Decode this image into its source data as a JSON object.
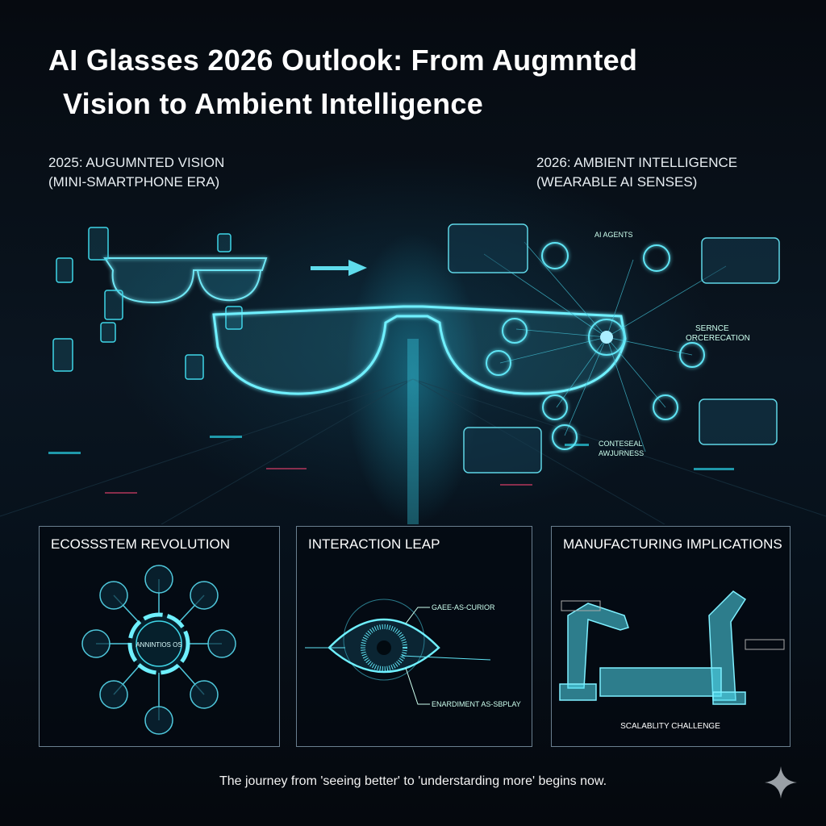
{
  "title": {
    "line1": "AI Glasses 2026 Outlook: From Augmnted",
    "line2": "Vision to Ambient Intelligence"
  },
  "left_era": {
    "line1": "2025: AUGUMNTED VISION",
    "line2": "(MINI-SMARTPHONE ERA)"
  },
  "right_era": {
    "line1": "2026: AMBIENT INTELLIGENCE",
    "line2": "(WEARABLE AI SENSES)"
  },
  "network_labels": {
    "agents": "AI AGENTS",
    "service1": "SERNCE",
    "service2": "ORCERECATION",
    "context1": "CONTESEAL",
    "context2": "AWJURNESS"
  },
  "panels": [
    {
      "title": "ECOSSSTEM REVOLUTION",
      "center": "ANNINTIOS OS"
    },
    {
      "title": "INTERACTION LEAP",
      "labels": [
        "GAEE-AS-CURIOR",
        "ENARDIMENT AS-SBPLAY"
      ]
    },
    {
      "title": "MANUFACTURING IMPLICATIONS",
      "footer": "SCALABLITY CHALLENGE"
    }
  ],
  "caption": "The journey from 'seeing better' to 'understarding more' begins now.",
  "colors": {
    "accent": "#3fd6e8",
    "background": "#05090f",
    "panel_border": "#6a7f8f"
  },
  "icons": [
    "arrow-right-icon",
    "sparkle-icon",
    "eye-icon",
    "robot-arm-icon"
  ]
}
